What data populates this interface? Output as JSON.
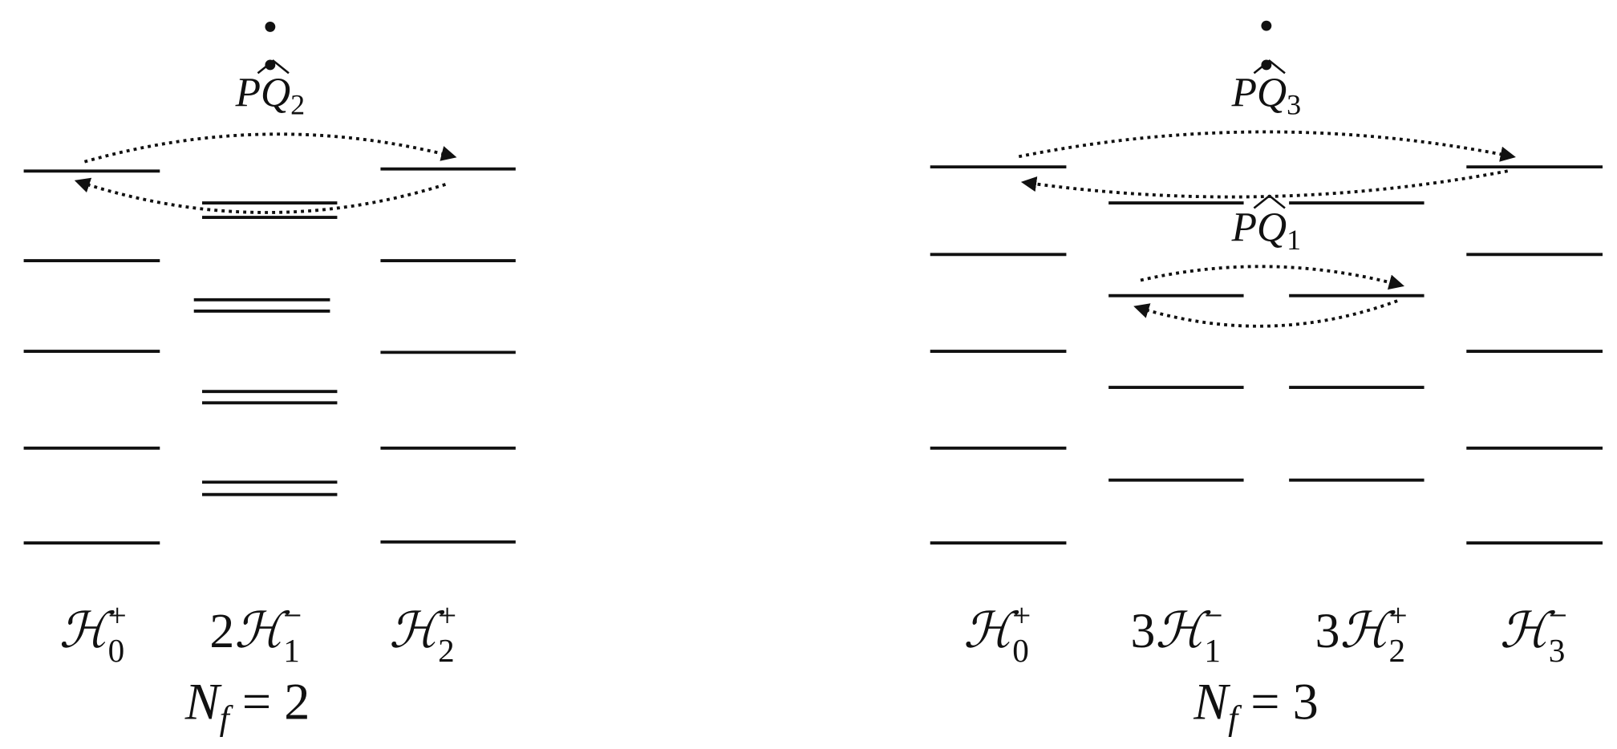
{
  "diagrams": [
    {
      "operators": [
        {
          "p": "P",
          "q": "Q",
          "sub": "2"
        }
      ],
      "columns": [
        {
          "prefix": "",
          "symbol": "ℋ",
          "sub": "0",
          "sup": "+"
        },
        {
          "prefix": "2",
          "symbol": "ℋ",
          "sub": "1",
          "sup": "−"
        },
        {
          "prefix": "",
          "symbol": "ℋ",
          "sub": "2",
          "sup": "+"
        }
      ],
      "caption": {
        "base": "N",
        "sub": "f",
        "rest": " = 2"
      }
    },
    {
      "operators": [
        {
          "p": "P",
          "q": "Q",
          "sub": "3"
        },
        {
          "p": "P",
          "q": "Q",
          "sub": "1"
        }
      ],
      "columns": [
        {
          "prefix": "",
          "symbol": "ℋ",
          "sub": "0",
          "sup": "+"
        },
        {
          "prefix": "3",
          "symbol": "ℋ",
          "sub": "1",
          "sup": "−"
        },
        {
          "prefix": "3",
          "symbol": "ℋ",
          "sub": "2",
          "sup": "+"
        },
        {
          "prefix": "",
          "symbol": "ℋ",
          "sub": "3",
          "sup": "−"
        }
      ],
      "caption": {
        "base": "N",
        "sub": "f",
        "rest": " = 3"
      }
    }
  ]
}
